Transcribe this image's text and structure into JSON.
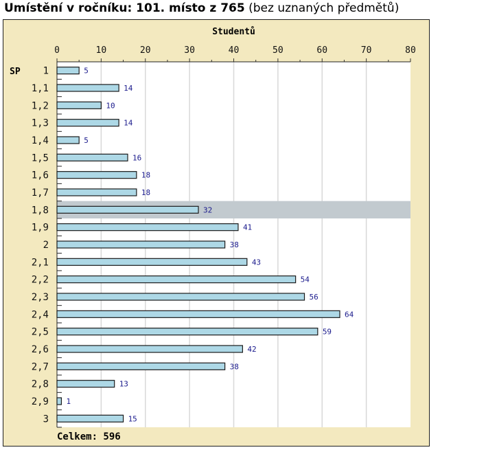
{
  "header": {
    "rank_label": "Umístění v ročníku: 101. místo z 765",
    "note": "(bez uznaných předmětů)"
  },
  "chart_data": {
    "type": "bar",
    "orientation": "horizontal",
    "title": "Studentů",
    "ylabel": "SP",
    "xlim": [
      0,
      80
    ],
    "x_ticks": [
      "0",
      "10",
      "20",
      "30",
      "40",
      "50",
      "60",
      "70",
      "80"
    ],
    "grid": true,
    "categories": [
      "1",
      "1,1",
      "1,2",
      "1,3",
      "1,4",
      "1,5",
      "1,6",
      "1,7",
      "1,8",
      "1,9",
      "2",
      "2,1",
      "2,2",
      "2,3",
      "2,4",
      "2,5",
      "2,6",
      "2,7",
      "2,8",
      "2,9",
      "3"
    ],
    "values": [
      5,
      14,
      10,
      14,
      5,
      16,
      18,
      18,
      32,
      41,
      38,
      43,
      54,
      56,
      64,
      59,
      42,
      38,
      13,
      1,
      15
    ],
    "highlighted_category": "1,8",
    "total_label": "Celkem: 596",
    "colors": {
      "panel": "#f3e9bf",
      "plot": "#ffffff",
      "bar": "#add8e6",
      "bar_border": "#1a1a1a",
      "value_label": "#1a1a8c",
      "highlight": "#c2cacf",
      "grid": "#d8d8d8"
    }
  }
}
